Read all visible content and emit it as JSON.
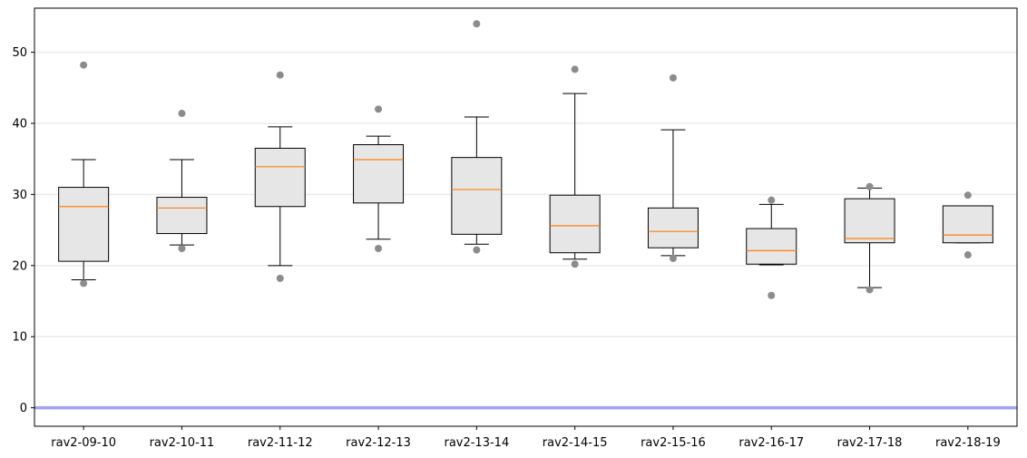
{
  "chart_data": {
    "type": "boxplot",
    "title": "",
    "xlabel": "",
    "ylabel": "",
    "ylim": [
      -2.6,
      56.2
    ],
    "yticks": [
      0,
      10,
      20,
      30,
      40,
      50
    ],
    "grid": "horizontal",
    "categories": [
      "rav2-09-10",
      "rav2-10-11",
      "rav2-11-12",
      "rav2-12-13",
      "rav2-13-14",
      "rav2-14-15",
      "rav2-15-16",
      "rav2-16-17",
      "rav2-17-18",
      "rav2-18-19"
    ],
    "boxes": [
      {
        "whislo": 18.0,
        "q1": 20.6,
        "med": 28.3,
        "q3": 31.0,
        "whishi": 34.9,
        "fliers": [
          17.5,
          48.2
        ]
      },
      {
        "whislo": 22.9,
        "q1": 24.5,
        "med": 28.1,
        "q3": 29.6,
        "whishi": 34.9,
        "fliers": [
          22.4,
          41.4
        ]
      },
      {
        "whislo": 20.0,
        "q1": 28.3,
        "med": 33.9,
        "q3": 36.5,
        "whishi": 39.5,
        "fliers": [
          18.2,
          46.8
        ]
      },
      {
        "whislo": 23.7,
        "q1": 28.8,
        "med": 34.9,
        "q3": 37.0,
        "whishi": 38.2,
        "fliers": [
          22.4,
          42.0
        ]
      },
      {
        "whislo": 23.0,
        "q1": 24.4,
        "med": 30.7,
        "q3": 35.2,
        "whishi": 40.9,
        "fliers": [
          22.2,
          54.0
        ]
      },
      {
        "whislo": 20.9,
        "q1": 21.8,
        "med": 25.6,
        "q3": 29.9,
        "whishi": 44.2,
        "fliers": [
          20.2,
          47.6
        ]
      },
      {
        "whislo": 21.4,
        "q1": 22.5,
        "med": 24.8,
        "q3": 28.1,
        "whishi": 39.1,
        "fliers": [
          21.0,
          46.4
        ]
      },
      {
        "whislo": 20.1,
        "q1": 20.2,
        "med": 22.1,
        "q3": 25.2,
        "whishi": 28.6,
        "fliers": [
          15.8,
          29.2
        ]
      },
      {
        "whislo": 16.9,
        "q1": 23.2,
        "med": 23.8,
        "q3": 29.4,
        "whishi": 30.9,
        "fliers": [
          16.6,
          31.1
        ]
      },
      {
        "whislo": 23.2,
        "q1": 23.2,
        "med": 24.3,
        "q3": 28.4,
        "whishi": 28.4,
        "fliers": [
          21.5,
          29.9
        ]
      }
    ],
    "reference_line": {
      "y": 0,
      "color": "#a3a3f5"
    },
    "colors": {
      "box_fill": "#e6e6e6",
      "box_edge": "#000000",
      "median": "#ff7f0e",
      "flier": "#8c8c8c",
      "grid": "#ebebeb"
    }
  }
}
